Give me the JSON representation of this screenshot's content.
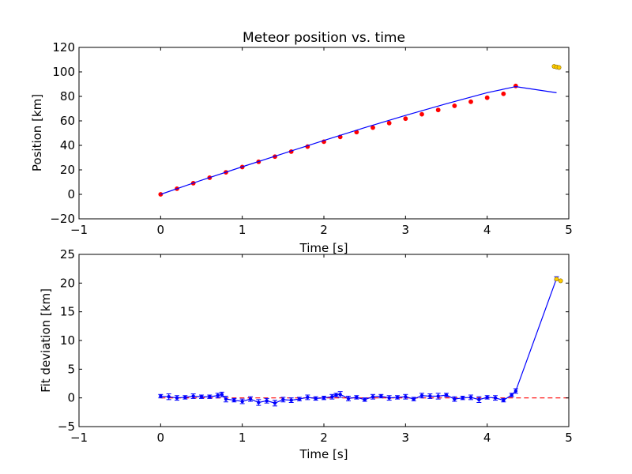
{
  "chart_data": [
    {
      "type": "scatter",
      "title": "Meteor position vs. time",
      "xlabel": "Time [s]",
      "ylabel": "Position [km]",
      "xlim": [
        -1,
        5
      ],
      "ylim": [
        -20,
        120
      ],
      "xticks": [
        -1,
        0,
        1,
        2,
        3,
        4,
        5
      ],
      "yticks": [
        -20,
        0,
        20,
        40,
        60,
        80,
        100,
        120
      ],
      "xtick_labels": [
        "−1",
        "0",
        "1",
        "2",
        "3",
        "4",
        "5"
      ],
      "ytick_labels": [
        "−20",
        "0",
        "20",
        "40",
        "60",
        "80",
        "100",
        "120"
      ],
      "grid": false,
      "series": [
        {
          "kind": "points",
          "color": "#ff0000",
          "x": [
            0.0,
            0.2,
            0.4,
            0.6,
            0.8,
            1.0,
            1.2,
            1.4,
            1.6,
            1.8,
            2.0,
            2.2,
            2.4,
            2.6,
            2.8,
            3.0,
            3.2,
            3.4,
            3.6,
            3.8,
            4.0,
            4.2,
            4.35
          ],
          "y": [
            0.0,
            4.6,
            9.1,
            13.6,
            18.0,
            22.3,
            26.6,
            30.8,
            34.9,
            39.0,
            43.0,
            46.9,
            50.8,
            54.5,
            58.2,
            61.8,
            65.4,
            68.9,
            72.3,
            75.6,
            78.9,
            82.1,
            88.5
          ]
        },
        {
          "kind": "line",
          "color": "#0000ff",
          "x": [
            0.0,
            0.5,
            1.0,
            1.5,
            2.0,
            2.5,
            3.0,
            3.5,
            4.0,
            4.35,
            4.85
          ],
          "y": [
            0.0,
            11.5,
            22.5,
            33.3,
            44.0,
            54.5,
            64.5,
            74.0,
            83.0,
            88.0,
            83.0
          ]
        },
        {
          "kind": "points",
          "color": "#ffcc00",
          "x": [
            4.82,
            4.85,
            4.88
          ],
          "y": [
            104.5,
            104.0,
            103.6
          ]
        }
      ]
    },
    {
      "type": "scatter",
      "title": "",
      "xlabel": "Time [s]",
      "ylabel": "Fit deviation [km]",
      "xlim": [
        -1,
        5
      ],
      "ylim": [
        -5,
        25
      ],
      "xticks": [
        -1,
        0,
        1,
        2,
        3,
        4,
        5
      ],
      "yticks": [
        -5,
        0,
        5,
        10,
        15,
        20,
        25
      ],
      "xtick_labels": [
        "−1",
        "0",
        "1",
        "2",
        "3",
        "4",
        "5"
      ],
      "ytick_labels": [
        "−5",
        "0",
        "5",
        "10",
        "15",
        "20",
        "25"
      ],
      "grid": false,
      "series": [
        {
          "kind": "reference",
          "color": "#ff0000",
          "style": "dashed",
          "x": [
            0.0,
            5.0
          ],
          "y": [
            0.0,
            0.0
          ]
        },
        {
          "kind": "errorbar",
          "color": "#0000ff",
          "x": [
            0.0,
            0.1,
            0.2,
            0.3,
            0.4,
            0.5,
            0.6,
            0.7,
            0.75,
            0.8,
            0.9,
            1.0,
            1.1,
            1.2,
            1.3,
            1.4,
            1.5,
            1.6,
            1.7,
            1.8,
            1.9,
            2.0,
            2.1,
            2.15,
            2.2,
            2.3,
            2.4,
            2.5,
            2.6,
            2.7,
            2.8,
            2.9,
            3.0,
            3.1,
            3.2,
            3.3,
            3.4,
            3.5,
            3.6,
            3.7,
            3.8,
            3.9,
            4.0,
            4.1,
            4.2,
            4.3,
            4.35,
            4.85
          ],
          "y": [
            0.3,
            0.2,
            0.0,
            0.1,
            0.3,
            0.2,
            0.2,
            0.4,
            0.6,
            -0.2,
            -0.4,
            -0.6,
            -0.2,
            -0.8,
            -0.5,
            -0.9,
            -0.3,
            -0.4,
            -0.2,
            0.1,
            -0.1,
            0.0,
            0.2,
            0.5,
            0.6,
            -0.1,
            0.1,
            -0.3,
            0.2,
            0.3,
            0.0,
            0.1,
            0.2,
            -0.2,
            0.4,
            0.3,
            0.3,
            0.5,
            -0.2,
            0.0,
            0.1,
            -0.3,
            0.1,
            0.0,
            -0.4,
            0.5,
            1.2,
            20.8
          ],
          "err": [
            0.3,
            0.5,
            0.4,
            0.3,
            0.4,
            0.3,
            0.3,
            0.4,
            0.4,
            0.5,
            0.3,
            0.4,
            0.4,
            0.5,
            0.4,
            0.5,
            0.4,
            0.4,
            0.3,
            0.4,
            0.3,
            0.3,
            0.4,
            0.3,
            0.5,
            0.4,
            0.3,
            0.3,
            0.4,
            0.3,
            0.4,
            0.3,
            0.4,
            0.3,
            0.4,
            0.4,
            0.5,
            0.3,
            0.4,
            0.3,
            0.4,
            0.5,
            0.3,
            0.4,
            0.3,
            0.3,
            0.4,
            0.3
          ]
        },
        {
          "kind": "points",
          "color": "#ffcc00",
          "x": [
            4.85,
            4.9
          ],
          "y": [
            20.7,
            20.4
          ]
        }
      ]
    }
  ]
}
